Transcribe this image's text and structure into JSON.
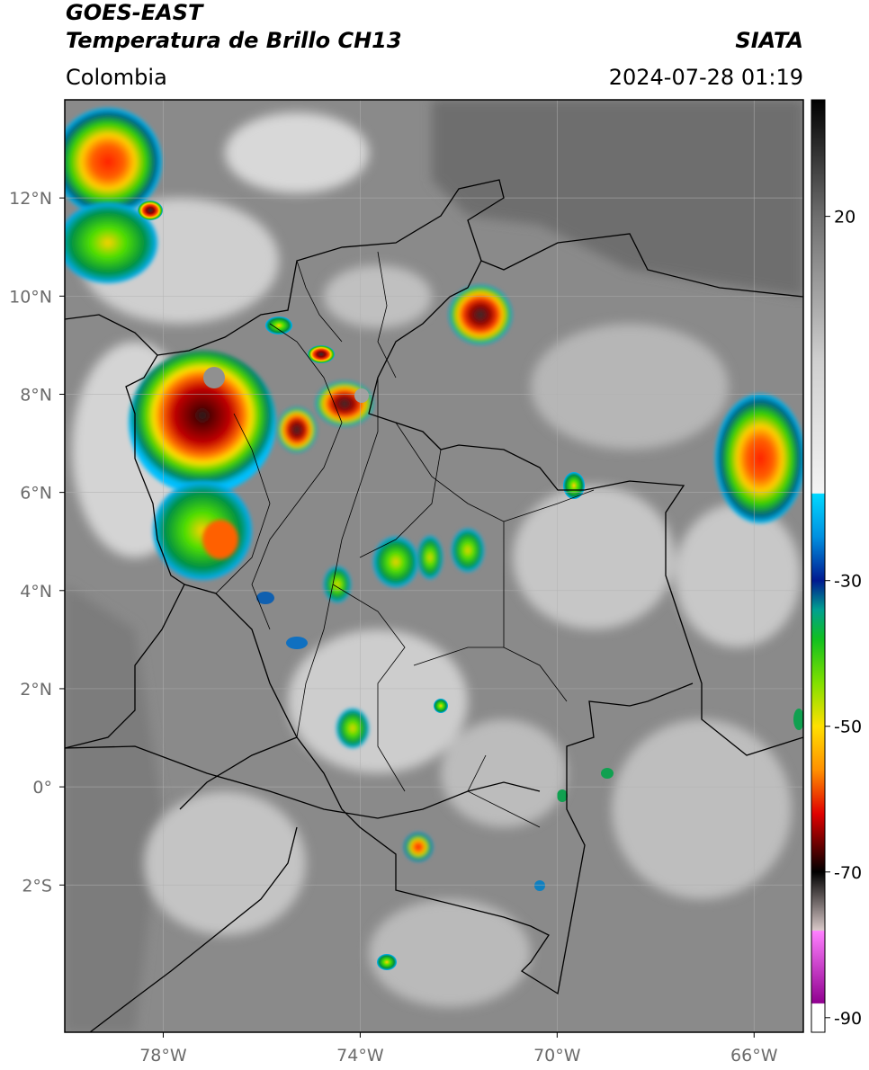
{
  "header": {
    "satellite": "GOES-EAST",
    "product": "Temperatura de Brillo CH13",
    "region": "Colombia",
    "organization": "SIATA",
    "datetime": "2024-07-28 01:19"
  },
  "map": {
    "lon_range": [
      -80,
      -65
    ],
    "lat_range": [
      -5,
      14
    ],
    "lat_ticks": [
      {
        "value": 12,
        "label": "12°N"
      },
      {
        "value": 10,
        "label": "10°N"
      },
      {
        "value": 8,
        "label": "8°N"
      },
      {
        "value": 6,
        "label": "6°N"
      },
      {
        "value": 4,
        "label": "4°N"
      },
      {
        "value": 2,
        "label": "2°N"
      },
      {
        "value": 0,
        "label": "0°"
      },
      {
        "value": -2,
        "label": "2°S"
      }
    ],
    "lon_ticks": [
      {
        "value": -78,
        "label": "78°W"
      },
      {
        "value": -74,
        "label": "74°W"
      },
      {
        "value": -70,
        "label": "70°W"
      },
      {
        "value": -66,
        "label": "66°W"
      }
    ],
    "grid": true,
    "colors": {
      "land": "#8e8e8e",
      "high_cloud": "#d6d6d6",
      "cold_cloud_ramp": [
        "#00c0ff",
        "#0040a0",
        "#00a040",
        "#40e000",
        "#ffe000",
        "#ff8000",
        "#e00000",
        "#700000",
        "#000000"
      ],
      "border": "#000000"
    }
  },
  "colorbar": {
    "labels": [
      {
        "value": 20,
        "label": "20"
      },
      {
        "value": -30,
        "label": "-30"
      },
      {
        "value": -50,
        "label": "-50"
      },
      {
        "value": -70,
        "label": "-70"
      },
      {
        "value": -90,
        "label": "-90"
      }
    ],
    "range": [
      -92,
      36
    ],
    "stops": [
      {
        "value": 36,
        "color": "#000000"
      },
      {
        "value": 20,
        "color": "#6e6e6e"
      },
      {
        "value": 0,
        "color": "#d0d0d0"
      },
      {
        "value": -18,
        "color": "#f4f4f4"
      },
      {
        "value": -18.1,
        "color": "#00d8ff"
      },
      {
        "value": -24,
        "color": "#0090e0"
      },
      {
        "value": -30,
        "color": "#001a90"
      },
      {
        "value": -34,
        "color": "#00a090"
      },
      {
        "value": -38,
        "color": "#10c020"
      },
      {
        "value": -44,
        "color": "#80e000"
      },
      {
        "value": -50,
        "color": "#ffe000"
      },
      {
        "value": -56,
        "color": "#ff9000"
      },
      {
        "value": -62,
        "color": "#e00000"
      },
      {
        "value": -66,
        "color": "#700000"
      },
      {
        "value": -70,
        "color": "#000000"
      },
      {
        "value": -78,
        "color": "#d8c8c8"
      },
      {
        "value": -78.1,
        "color": "#ff80ff"
      },
      {
        "value": -88,
        "color": "#900090"
      },
      {
        "value": -88.1,
        "color": "#ffffff"
      },
      {
        "value": -92,
        "color": "#ffffff"
      }
    ]
  }
}
